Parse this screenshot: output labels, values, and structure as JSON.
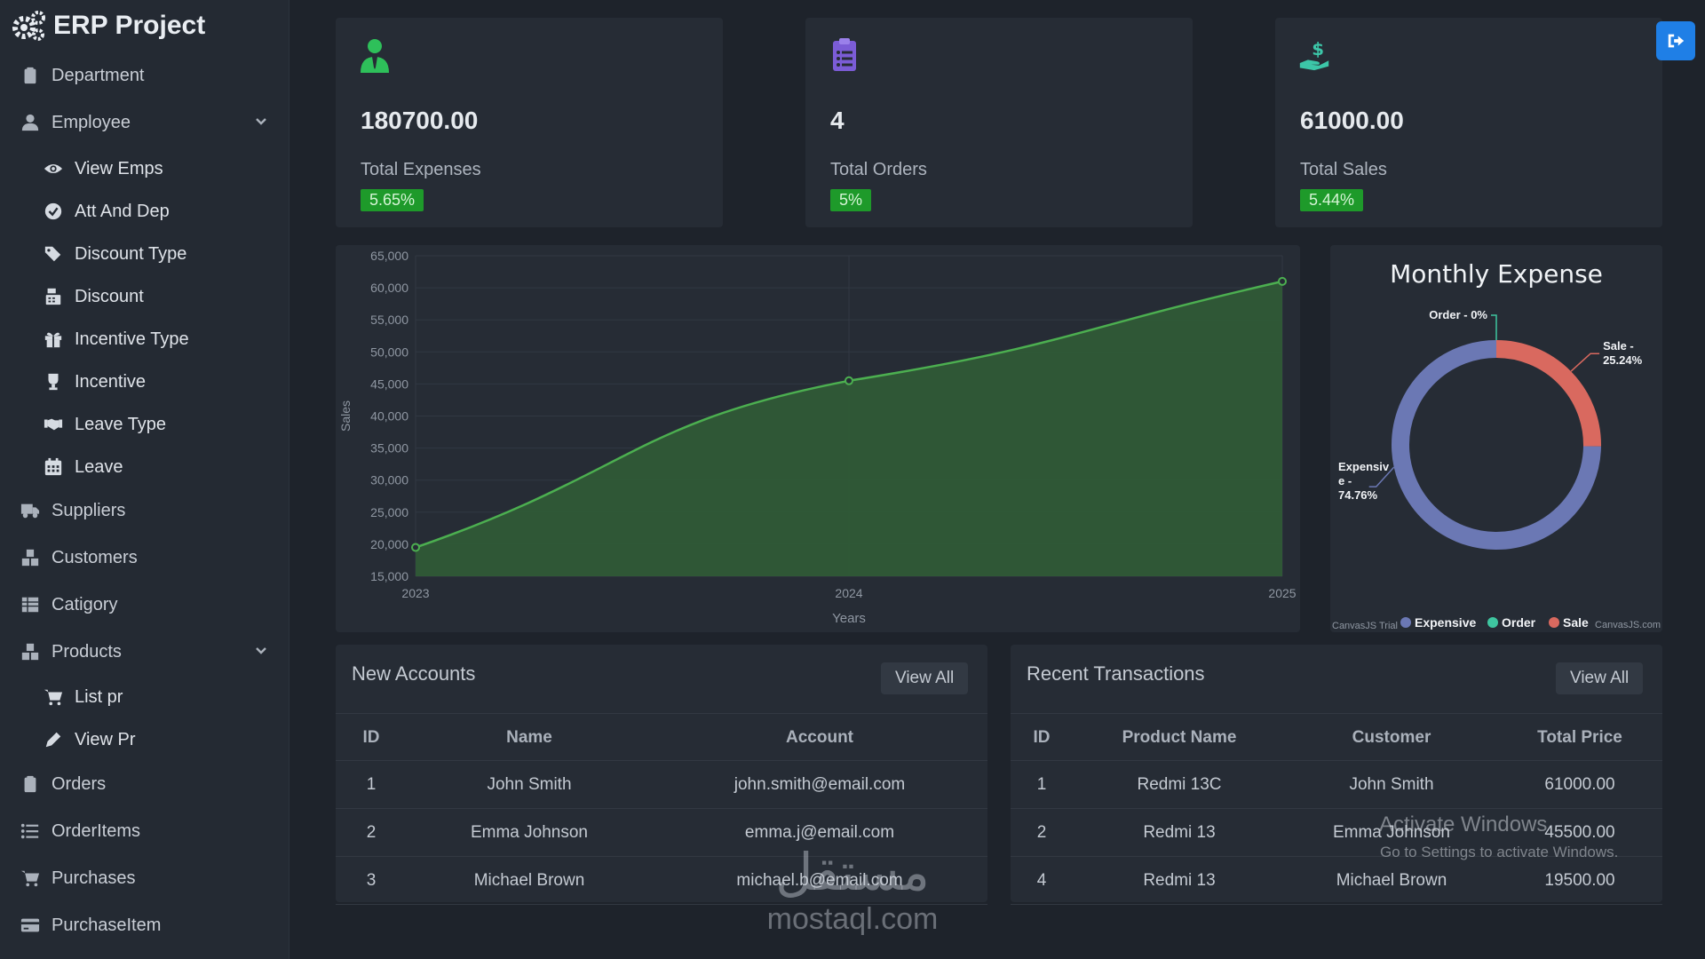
{
  "brand": {
    "title": "ERP Project"
  },
  "sidebar": {
    "items": [
      {
        "label": "Department",
        "icon": "clipboard-icon"
      },
      {
        "label": "Employee",
        "icon": "user-icon"
      },
      {
        "label": "View Emps",
        "icon": "eye-icon"
      },
      {
        "label": "Att And Dep",
        "icon": "check-circle-icon"
      },
      {
        "label": "Discount Type",
        "icon": "tags-icon"
      },
      {
        "label": "Discount",
        "icon": "cash-register-icon"
      },
      {
        "label": "Incentive Type",
        "icon": "gift-icon"
      },
      {
        "label": "Incentive",
        "icon": "trophy-icon"
      },
      {
        "label": "Leave Type",
        "icon": "handshake-icon"
      },
      {
        "label": "Leave",
        "icon": "calendar-icon"
      },
      {
        "label": "Suppliers",
        "icon": "truck-icon"
      },
      {
        "label": "Customers",
        "icon": "boxes-icon"
      },
      {
        "label": "Catigory",
        "icon": "table-icon"
      },
      {
        "label": "Products",
        "icon": "boxes-icon"
      },
      {
        "label": "List pr",
        "icon": "cart-icon"
      },
      {
        "label": "View Pr",
        "icon": "pen-icon"
      },
      {
        "label": "Orders",
        "icon": "clipboard-icon"
      },
      {
        "label": "OrderItems",
        "icon": "list-icon"
      },
      {
        "label": "Purchases",
        "icon": "cart-icon"
      },
      {
        "label": "PurchaseItem",
        "icon": "credit-card-icon"
      }
    ]
  },
  "stats": [
    {
      "value": "180700.00",
      "label": "Total Expenses",
      "badge": "5.65%",
      "icon": "user-tie-icon",
      "color": "#2ec05a"
    },
    {
      "value": "4",
      "label": "Total Orders",
      "badge": "5%",
      "icon": "clipboard-list-icon",
      "color": "#7b5cd6"
    },
    {
      "value": "61000.00",
      "label": "Total Sales",
      "badge": "5.44%",
      "icon": "hand-holding-dollar-icon",
      "color": "#3cc6a8"
    }
  ],
  "logout": {
    "icon": "sign-out-icon",
    "color": "#1f7fe6"
  },
  "chart_data": [
    {
      "type": "area",
      "x": [
        "2023",
        "2024",
        "2025"
      ],
      "values": [
        19500,
        45500,
        61000
      ],
      "xlabel": "Years",
      "ylabel": "Sales",
      "ylim": [
        15000,
        65000
      ],
      "yticks": [
        "15,000",
        "20,000",
        "25,000",
        "30,000",
        "35,000",
        "40,000",
        "45,000",
        "50,000",
        "55,000",
        "60,000",
        "65,000"
      ],
      "grid": true,
      "color": "#4caf50"
    },
    {
      "type": "pie",
      "title": "Monthly Expense",
      "slices": [
        {
          "name": "Expensive",
          "value": 74.76,
          "label": "Expensiv e - 74.76%",
          "color": "#6b78b4"
        },
        {
          "name": "Order",
          "value": 0,
          "label": "Order - 0%",
          "color": "#3ec6a0"
        },
        {
          "name": "Sale",
          "value": 25.24,
          "label": "Sale - 25.24%",
          "color": "#d9695f"
        }
      ],
      "legend": [
        "Expensive",
        "Order",
        "Sale"
      ],
      "credit_left": "CanvasJS Trial",
      "credit_right": "CanvasJS.com"
    }
  ],
  "accounts": {
    "title": "New Accounts",
    "view_all": "View All",
    "headers": [
      "ID",
      "Name",
      "Account"
    ],
    "rows": [
      [
        "1",
        "John Smith",
        "john.smith@email.com"
      ],
      [
        "2",
        "Emma Johnson",
        "emma.j@email.com"
      ],
      [
        "3",
        "Michael Brown",
        "michael.b@email.com"
      ]
    ]
  },
  "transactions": {
    "title": "Recent Transactions",
    "view_all": "View All",
    "headers": [
      "ID",
      "Product Name",
      "Customer",
      "Total Price"
    ],
    "rows": [
      [
        "1",
        "Redmi 13C",
        "John Smith",
        "61000.00"
      ],
      [
        "2",
        "Redmi 13",
        "Emma Johnson",
        "45500.00"
      ],
      [
        "4",
        "Redmi 13",
        "Michael Brown",
        "19500.00"
      ]
    ]
  },
  "overlay": {
    "activate_title": "Activate Windows",
    "activate_sub": "Go to Settings to activate Windows.",
    "mostaql_ar": "مستقل",
    "mostaql_en": "mostaql.com"
  }
}
